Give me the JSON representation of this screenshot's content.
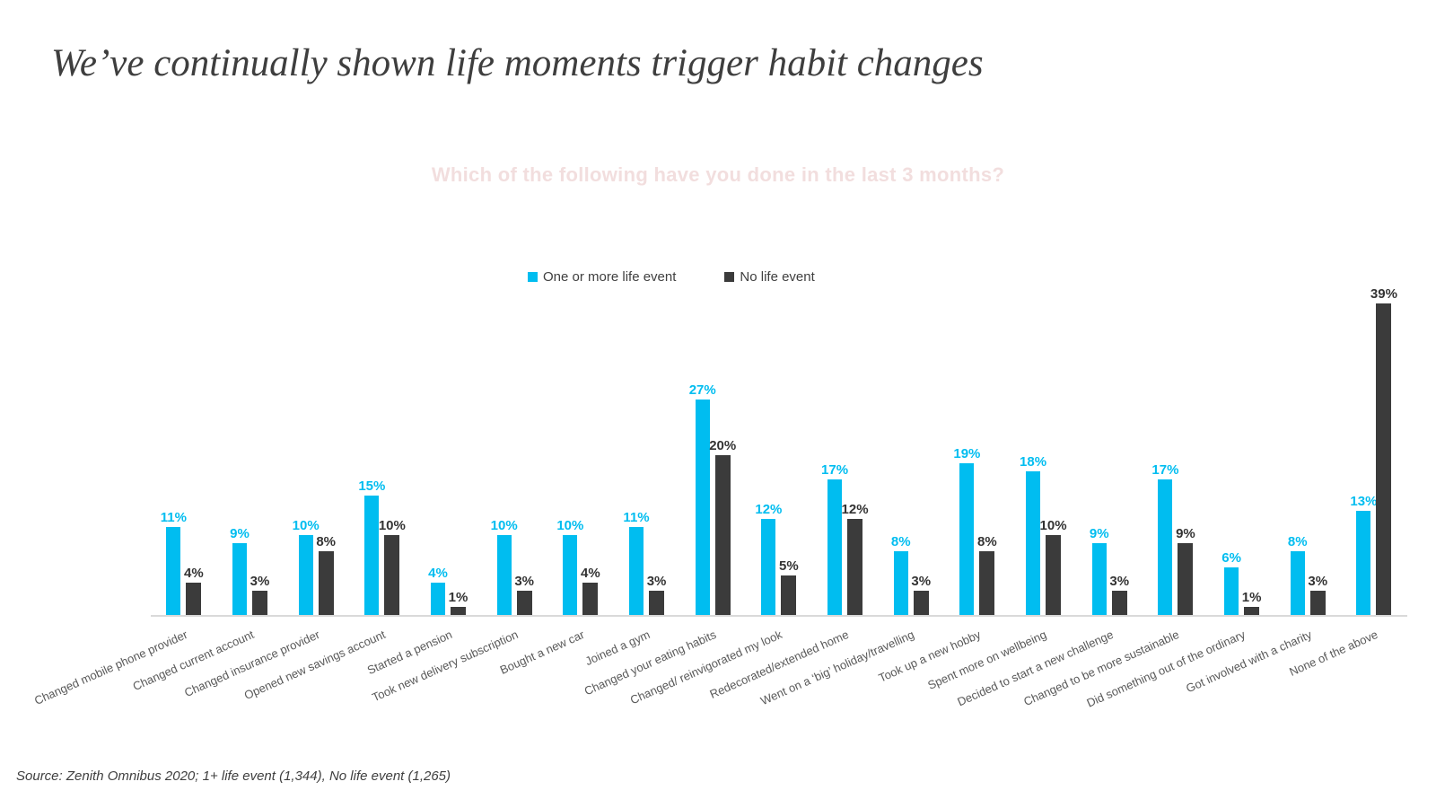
{
  "page": {
    "title": "We’ve continually shown life moments trigger habit changes",
    "source": "Source: Zenith Omnibus 2020; 1+ life event (1,344), No life event (1,265)"
  },
  "chart_data": {
    "type": "bar",
    "title": "Which of the following have you done in the last 3 months?",
    "title_color": "#F2DEDE",
    "categories": [
      "Changed mobile phone provider",
      "Changed current account",
      "Changed insurance provider",
      "Opened new savings account",
      "Started a pension",
      "Took new delivery subscription",
      "Bought a new car",
      "Joined a gym",
      "Changed your eating habits",
      "Changed/ reinvigorated my look",
      "Redecorated/extended home",
      "Went on a ‘big’ holiday/travelling",
      "Took up a new hobby",
      "Spent more on wellbeing",
      "Decided to start a new challenge",
      "Changed to be more sustainable",
      "Did something out of the ordinary",
      "Got involved with a charity",
      "None of the above"
    ],
    "series": [
      {
        "name": "One or more life event",
        "color": "#00BDF0",
        "values": [
          11,
          9,
          10,
          15,
          4,
          10,
          10,
          11,
          27,
          12,
          17,
          8,
          19,
          18,
          9,
          17,
          6,
          8,
          13
        ]
      },
      {
        "name": "No life event",
        "color": "#3B3B3B",
        "values": [
          4,
          3,
          8,
          10,
          1,
          3,
          4,
          3,
          20,
          5,
          12,
          3,
          8,
          10,
          3,
          9,
          1,
          3,
          39
        ]
      }
    ],
    "value_suffix": "%",
    "ylim": [
      0,
      40
    ],
    "grid": false,
    "legend_position": "top-center",
    "axis_line_color": "#D9D9D9"
  }
}
